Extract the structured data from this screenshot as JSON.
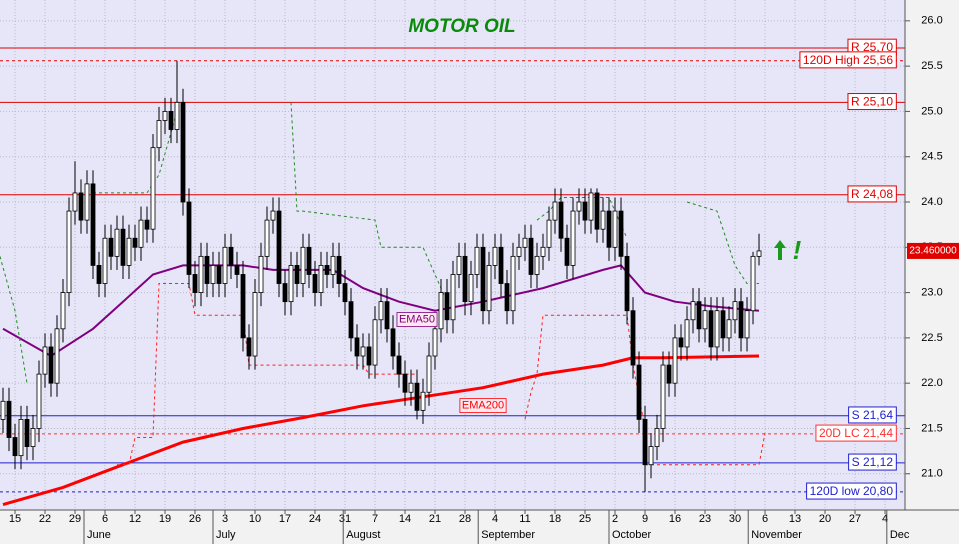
{
  "chart_data": {
    "type": "candlestick",
    "title": "MOTOR OIL",
    "open": [
      21.6,
      21.8,
      21.4,
      21.2,
      21.6,
      21.3,
      21.5,
      22.1,
      22.4,
      22.0,
      22.6,
      23.0,
      23.9,
      24.1,
      23.8,
      24.2,
      23.3,
      23.1,
      23.6,
      23.4,
      23.7,
      23.3,
      23.6,
      23.5,
      23.8,
      23.7,
      24.6,
      24.9,
      25.0,
      24.8,
      25.1,
      24.0,
      23.2,
      23.0,
      23.4,
      23.1,
      23.3,
      23.1,
      23.5,
      23.3,
      23.2,
      22.5,
      22.3,
      23.0,
      23.4,
      23.8,
      23.9,
      23.1,
      22.9,
      23.3,
      23.1,
      23.5,
      23.2,
      23.0,
      23.3,
      23.2,
      23.4,
      23.1,
      22.9,
      22.5,
      22.3,
      22.4,
      22.2,
      22.7,
      22.9,
      22.6,
      22.3,
      22.1,
      21.9,
      22.0,
      21.7,
      21.9,
      22.3,
      22.6,
      23.0,
      22.7,
      23.2,
      23.4,
      22.9,
      23.2,
      23.5,
      22.8,
      23.3,
      23.5,
      23.1,
      22.8,
      23.4,
      23.5,
      23.6,
      23.2,
      23.4,
      23.5,
      23.8,
      24.0,
      23.6,
      23.3,
      23.9,
      24.0,
      23.8,
      24.1,
      23.7,
      23.9,
      23.5,
      23.9,
      23.4,
      22.8,
      22.2,
      21.6,
      21.1,
      21.3,
      21.5,
      22.2,
      22.0,
      22.5,
      22.4,
      22.7,
      22.9,
      22.6,
      22.8,
      22.4,
      22.8,
      22.5,
      22.7,
      22.9,
      22.5,
      22.8,
      23.4
    ],
    "high": [
      21.95,
      21.95,
      21.55,
      21.75,
      21.75,
      21.65,
      22.25,
      22.55,
      22.55,
      22.75,
      23.15,
      24.05,
      24.45,
      24.25,
      24.35,
      24.35,
      23.45,
      23.75,
      23.75,
      23.85,
      23.85,
      23.75,
      23.75,
      23.95,
      23.95,
      24.75,
      25.05,
      25.15,
      25.15,
      25.56,
      25.25,
      24.15,
      23.35,
      23.55,
      23.55,
      23.45,
      23.45,
      23.65,
      23.65,
      23.45,
      23.35,
      22.65,
      23.15,
      23.55,
      23.95,
      24.05,
      24.05,
      23.25,
      23.45,
      23.45,
      23.65,
      23.65,
      23.35,
      23.45,
      23.45,
      23.55,
      23.55,
      23.25,
      23.05,
      22.65,
      22.55,
      22.55,
      22.85,
      23.05,
      23.05,
      22.75,
      22.45,
      22.25,
      22.15,
      22.15,
      22.05,
      22.45,
      22.75,
      23.15,
      23.15,
      23.35,
      23.55,
      23.55,
      23.35,
      23.65,
      23.65,
      23.45,
      23.65,
      23.65,
      23.25,
      23.55,
      23.65,
      23.75,
      23.75,
      23.55,
      23.65,
      23.95,
      24.15,
      24.15,
      23.75,
      24.05,
      24.15,
      24.15,
      24.15,
      24.15,
      24.05,
      24.05,
      24.05,
      24.05,
      23.55,
      22.95,
      22.35,
      21.75,
      21.45,
      21.65,
      22.35,
      22.35,
      22.65,
      22.65,
      22.85,
      23.05,
      23.05,
      22.95,
      22.95,
      22.95,
      22.95,
      22.85,
      23.05,
      23.05,
      22.95,
      23.45,
      23.65
    ],
    "low": [
      21.45,
      21.25,
      21.05,
      21.05,
      21.15,
      21.15,
      21.35,
      21.95,
      21.85,
      21.85,
      22.45,
      22.85,
      23.75,
      23.65,
      23.65,
      23.15,
      22.95,
      22.95,
      23.25,
      23.25,
      23.15,
      23.15,
      23.35,
      23.35,
      23.55,
      23.55,
      24.45,
      24.75,
      24.65,
      24.65,
      23.85,
      23.05,
      22.85,
      22.85,
      22.95,
      22.95,
      22.95,
      22.95,
      23.15,
      23.05,
      22.35,
      22.15,
      22.15,
      22.85,
      23.25,
      23.65,
      22.95,
      22.75,
      22.75,
      22.95,
      22.95,
      23.05,
      22.85,
      22.85,
      23.05,
      23.05,
      22.95,
      22.75,
      22.35,
      22.15,
      22.15,
      22.05,
      22.05,
      22.55,
      22.45,
      22.15,
      21.95,
      21.75,
      21.75,
      21.6,
      21.55,
      21.75,
      22.15,
      22.45,
      22.55,
      22.55,
      23.05,
      22.75,
      22.75,
      23.05,
      22.65,
      22.65,
      23.15,
      22.95,
      22.65,
      22.65,
      23.25,
      23.35,
      23.05,
      23.05,
      23.25,
      23.35,
      23.65,
      23.45,
      23.15,
      23.15,
      23.75,
      23.65,
      23.65,
      23.55,
      23.55,
      23.35,
      23.35,
      23.25,
      22.65,
      22.05,
      21.45,
      20.8,
      20.95,
      21.15,
      21.35,
      21.85,
      21.85,
      22.25,
      22.25,
      22.55,
      22.45,
      22.45,
      22.25,
      22.25,
      22.35,
      22.35,
      22.55,
      22.35,
      22.35,
      22.65,
      23.3
    ],
    "close": [
      21.8,
      21.4,
      21.2,
      21.6,
      21.3,
      21.5,
      22.1,
      22.4,
      22.0,
      22.6,
      23.0,
      23.9,
      24.1,
      23.8,
      24.2,
      23.3,
      23.1,
      23.6,
      23.4,
      23.7,
      23.3,
      23.6,
      23.5,
      23.8,
      23.7,
      24.6,
      24.9,
      25.0,
      24.8,
      25.1,
      24.0,
      23.2,
      23.0,
      23.4,
      23.1,
      23.3,
      23.1,
      23.5,
      23.3,
      23.2,
      22.5,
      22.3,
      23.0,
      23.4,
      23.8,
      23.9,
      23.1,
      22.9,
      23.3,
      23.1,
      23.5,
      23.2,
      23.0,
      23.3,
      23.2,
      23.4,
      23.1,
      22.9,
      22.5,
      22.3,
      22.4,
      22.2,
      22.7,
      22.9,
      22.6,
      22.3,
      22.1,
      21.9,
      22.0,
      21.7,
      21.9,
      22.3,
      22.6,
      23.0,
      22.7,
      23.2,
      23.4,
      22.9,
      23.2,
      23.5,
      22.8,
      23.3,
      23.5,
      23.1,
      22.8,
      23.4,
      23.5,
      23.6,
      23.2,
      23.4,
      23.5,
      23.8,
      24.0,
      23.6,
      23.3,
      23.9,
      24.0,
      23.8,
      24.1,
      23.7,
      23.9,
      23.5,
      23.9,
      23.4,
      22.8,
      22.2,
      21.6,
      21.1,
      21.3,
      21.5,
      22.2,
      22.0,
      22.5,
      22.4,
      22.7,
      22.9,
      22.6,
      22.8,
      22.4,
      22.8,
      22.5,
      22.7,
      22.9,
      22.5,
      22.8,
      23.4,
      23.46
    ],
    "up_color": "#ffffff",
    "down_color": "#000000",
    "lines": [
      {
        "name": "EMA50",
        "color": "#800080",
        "width": 2,
        "dash": "none",
        "label_at": 69,
        "x": [
          0,
          8,
          15,
          20,
          25,
          30,
          40,
          45,
          55,
          60,
          66,
          72,
          80,
          90,
          100,
          103,
          107,
          112,
          118,
          126
        ],
        "values": [
          22.6,
          22.3,
          22.6,
          22.9,
          23.2,
          23.3,
          23.3,
          23.25,
          23.25,
          23.05,
          22.9,
          22.8,
          22.9,
          23.05,
          23.25,
          23.3,
          23.0,
          22.9,
          22.85,
          22.8
        ]
      },
      {
        "name": "EMA200",
        "color": "#ff0000",
        "width": 3,
        "dash": "none",
        "label_at": 80,
        "x": [
          0,
          10,
          20,
          30,
          40,
          50,
          60,
          70,
          80,
          90,
          100,
          105,
          110,
          126
        ],
        "values": [
          20.66,
          20.85,
          21.1,
          21.35,
          21.5,
          21.62,
          21.75,
          21.85,
          21.95,
          22.1,
          22.2,
          22.28,
          22.28,
          22.3
        ]
      },
      {
        "color": "#228b22",
        "width": 1,
        "dash": "3,3",
        "x": [
          -0.5,
          2,
          4,
          null,
          15,
          24,
          26,
          29,
          null,
          48,
          49,
          50,
          62,
          63,
          70,
          72,
          74,
          null,
          89,
          91,
          93,
          101,
          104,
          null,
          114,
          119,
          122,
          124,
          126
        ],
        "values": [
          23.4,
          22.8,
          22.0,
          null,
          24.1,
          24.1,
          24.3,
          25.0,
          null,
          25.1,
          23.9,
          23.9,
          23.8,
          23.5,
          23.5,
          23.2,
          22.9,
          null,
          23.8,
          23.9,
          24.05,
          24.05,
          23.6,
          null,
          24.0,
          23.9,
          23.3,
          23.1,
          23.1
        ]
      },
      {
        "color": "#ff2020",
        "width": 1,
        "dash": "3,3",
        "x": [
          19,
          21,
          22,
          25,
          26,
          31,
          32,
          40,
          41,
          60,
          61,
          69,
          null,
          87,
          88,
          89,
          90,
          104,
          105,
          107,
          null,
          107,
          126,
          127
        ],
        "values": [
          21.1,
          21.1,
          21.4,
          21.4,
          23.1,
          23.1,
          22.75,
          22.75,
          22.2,
          22.2,
          22.1,
          22.1,
          null,
          21.6,
          21.9,
          22.1,
          22.75,
          22.75,
          22.2,
          21.5,
          null,
          21.1,
          21.1,
          21.45
        ]
      }
    ],
    "levels": [
      {
        "label": "R 25,70",
        "value": 25.7,
        "color": "#e00000",
        "dash": "none"
      },
      {
        "label": "120D High 25,56",
        "value": 25.56,
        "color": "#e00000",
        "dash": "3,3"
      },
      {
        "label": "R 25,10",
        "value": 25.1,
        "color": "#e00000",
        "dash": "none"
      },
      {
        "label": "R 24,08",
        "value": 24.08,
        "color": "#e00000",
        "dash": "none"
      },
      {
        "label": "S 21,64",
        "value": 21.64,
        "color": "#2020d0",
        "dash": "none"
      },
      {
        "label": "20D LC 21,44",
        "value": 21.44,
        "color": "#ff3030",
        "dash": "3,3"
      },
      {
        "label": "S 21,12",
        "value": 21.12,
        "color": "#2020d0",
        "dash": "none"
      },
      {
        "label": "120D low 20,80",
        "value": 20.8,
        "color": "#2020d0",
        "dash": "3,3"
      }
    ],
    "last_price": {
      "value": 23.46,
      "label": "23.460000"
    },
    "annotation": "!",
    "xlim": [
      -0.5,
      150.33
    ],
    "ylim": [
      20.6,
      26.23
    ],
    "yticks": [
      {
        "value": 21,
        "label": "21.0"
      },
      21.5,
      {
        "value": 22,
        "label": "22.0"
      },
      22.5,
      {
        "value": 23,
        "label": "23.0"
      },
      23.5,
      {
        "value": 24,
        "label": "24.0"
      },
      24.5,
      {
        "value": 25,
        "label": "25.0"
      },
      25.5,
      {
        "value": 26,
        "label": "26.0"
      }
    ],
    "xticks": [
      {
        "value": 2,
        "label": "15"
      },
      {
        "value": 7,
        "label": "22"
      },
      {
        "value": 12,
        "label": "29"
      },
      {
        "value": 17,
        "label": "6"
      },
      {
        "value": 22,
        "label": "12"
      },
      {
        "value": 27,
        "label": "19"
      },
      {
        "value": 32,
        "label": "26"
      },
      {
        "value": 37,
        "label": "3"
      },
      {
        "value": 42,
        "label": "10"
      },
      {
        "value": 47,
        "label": "17"
      },
      {
        "value": 52,
        "label": "24"
      },
      {
        "value": 57,
        "label": "31"
      },
      {
        "value": 62,
        "label": "7"
      },
      {
        "value": 67,
        "label": "14"
      },
      {
        "value": 72,
        "label": "21"
      },
      {
        "value": 77,
        "label": "28"
      },
      {
        "value": 82,
        "label": "4"
      },
      {
        "value": 87,
        "label": "11"
      },
      {
        "value": 92,
        "label": "18"
      },
      {
        "value": 97,
        "label": "25"
      },
      {
        "value": 102,
        "label": "2"
      },
      {
        "value": 107,
        "label": "9"
      },
      {
        "value": 112,
        "label": "16"
      },
      {
        "value": 117,
        "label": "23"
      },
      {
        "value": 122,
        "label": "30"
      },
      {
        "value": 127,
        "label": "6"
      },
      {
        "value": 132,
        "label": "13"
      },
      {
        "value": 137,
        "label": "20"
      },
      {
        "value": 142,
        "label": "27"
      },
      {
        "value": 147,
        "label": "4"
      }
    ],
    "month_ticks": [
      {
        "value": 13.5,
        "label": "June"
      },
      {
        "value": 35,
        "label": "July"
      },
      {
        "value": 56.7,
        "label": "August"
      },
      {
        "value": 79.2,
        "label": "September"
      },
      {
        "value": 101,
        "label": "October"
      },
      {
        "value": 124.2,
        "label": "November"
      },
      {
        "value": 147.3,
        "label": "Dec"
      }
    ],
    "grid": true
  }
}
